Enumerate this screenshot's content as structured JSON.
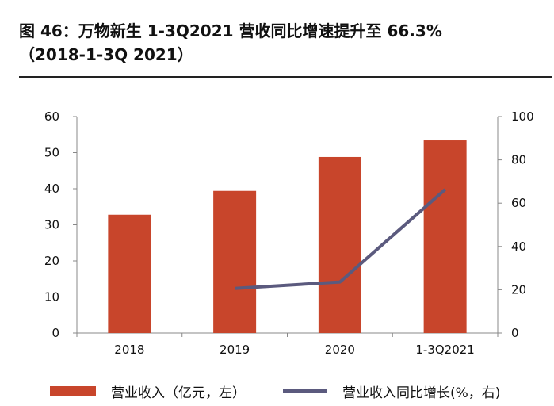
{
  "figure": {
    "title_line1": "图 46：万物新生 1-3Q2021 营收同比增速提升至 66.3%",
    "title_line2": "（2018-1-3Q 2021）"
  },
  "chart_data": {
    "type": "bar+line",
    "categories": [
      "2018",
      "2019",
      "2020",
      "1-3Q2021"
    ],
    "series": [
      {
        "name": "营业收入（亿元，左）",
        "type": "bar",
        "axis": "left",
        "color": "#c8452b",
        "values": [
          32.8,
          39.4,
          48.8,
          53.4
        ]
      },
      {
        "name": "营业收入同比增长(%，右)",
        "type": "line",
        "axis": "right",
        "color": "#5b5a7e",
        "values": [
          null,
          20.6,
          23.6,
          66.3
        ]
      }
    ],
    "y_left": {
      "min": 0,
      "max": 60,
      "ticks": [
        "0",
        "10",
        "20",
        "30",
        "40",
        "50",
        "60"
      ]
    },
    "y_right": {
      "min": 0,
      "max": 100,
      "ticks": [
        "0",
        "20",
        "40",
        "60",
        "80",
        "100"
      ]
    }
  },
  "legend": {
    "bar_label": "营业收入（亿元，左）",
    "line_label": "营业收入同比增长(%，右)"
  }
}
